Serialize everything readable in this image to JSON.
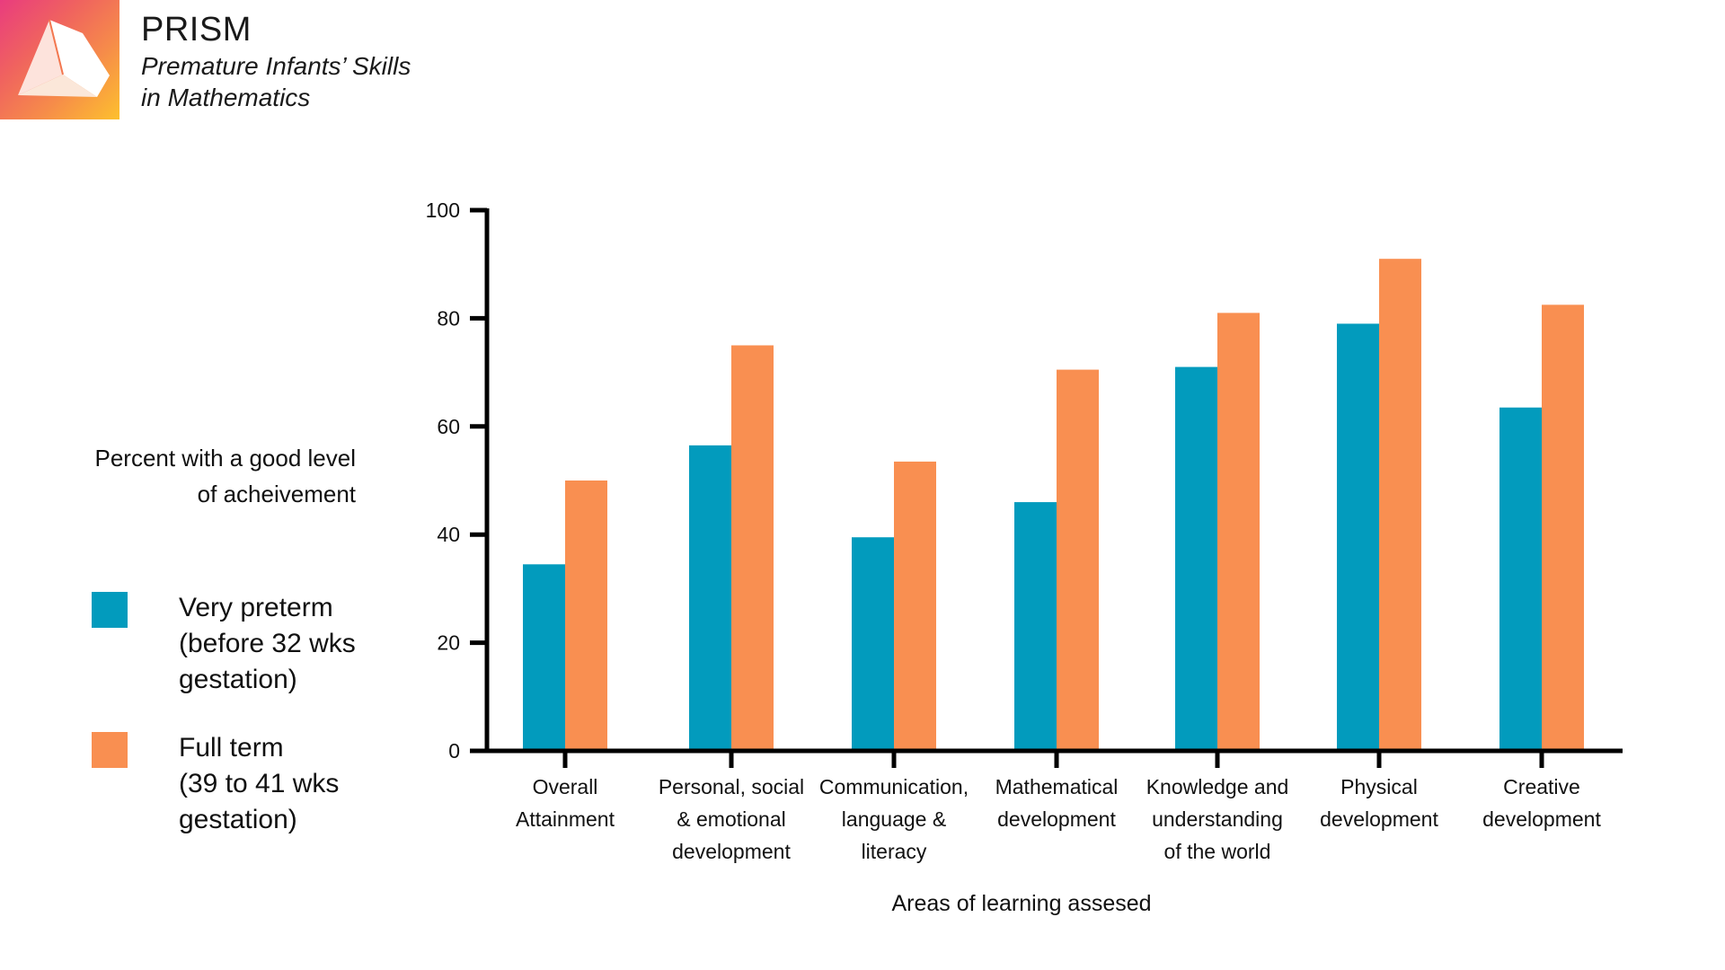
{
  "header": {
    "logo_icon": "prism-triangle-logo",
    "title": "PRISM",
    "subtitle_line1": "Premature Infants’ Skills",
    "subtitle_line2": "in Mathematics"
  },
  "legend": {
    "items": [
      {
        "label_lines": [
          "Very preterm",
          "(before 32 wks",
          "gestation)"
        ],
        "color": "#029bbd"
      },
      {
        "label_lines": [
          "Full term",
          "(39 to 41 wks",
          "gestation)"
        ],
        "color": "#f98f51"
      }
    ]
  },
  "chart_data": {
    "type": "bar",
    "title": "",
    "xlabel": "Areas of learning assesed",
    "ylabel": "Percent with a good level of acheivement",
    "ylabel_lines": [
      "Percent with a good level",
      "of acheivement"
    ],
    "ylim": [
      0,
      100
    ],
    "yticks": [
      0,
      20,
      40,
      60,
      80,
      100
    ],
    "grid": false,
    "legend_position": "left",
    "categories": [
      "Overall Attainment",
      "Personal, social & emotional development",
      "Communication, language & literacy",
      "Mathematical development",
      "Knowledge and understanding of the world",
      "Physical development",
      "Creative development"
    ],
    "category_label_lines": [
      [
        "Overall",
        "Attainment"
      ],
      [
        "Personal, social",
        "& emotional",
        "development"
      ],
      [
        "Communication,",
        "language &",
        "literacy"
      ],
      [
        "Mathematical",
        "development"
      ],
      [
        "Knowledge and",
        "understanding",
        "of the world"
      ],
      [
        "Physical",
        "development"
      ],
      [
        "Creative",
        "development"
      ]
    ],
    "series": [
      {
        "name": "Very preterm (before 32 wks gestation)",
        "color": "#029bbd",
        "values": [
          34.5,
          56.5,
          39.5,
          46,
          71,
          79,
          63.5
        ]
      },
      {
        "name": "Full term (39 to 41 wks gestation)",
        "color": "#f98f51",
        "values": [
          50,
          75,
          53.5,
          70.5,
          81,
          91,
          82.5
        ]
      }
    ]
  }
}
